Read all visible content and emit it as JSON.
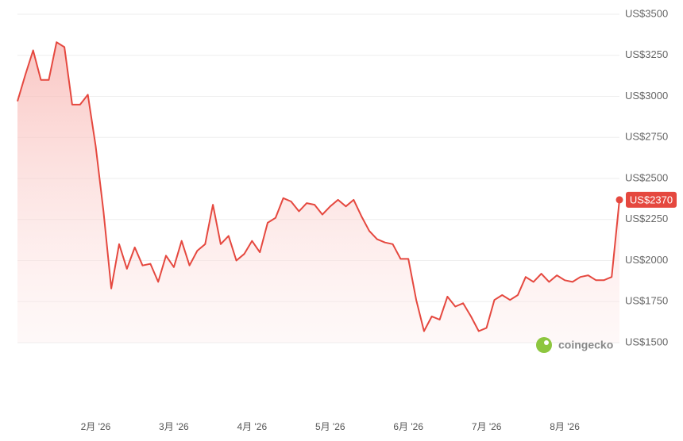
{
  "chart_data": {
    "type": "line",
    "categories": [
      null,
      null,
      null,
      null,
      null,
      null,
      null,
      null,
      null,
      null,
      "2月 '26",
      null,
      null,
      null,
      null,
      null,
      null,
      null,
      null,
      null,
      "3月 '26",
      null,
      null,
      null,
      null,
      null,
      null,
      null,
      null,
      null,
      "4月 '26",
      null,
      null,
      null,
      null,
      null,
      null,
      null,
      null,
      null,
      "5月 '26",
      null,
      null,
      null,
      null,
      null,
      null,
      null,
      null,
      null,
      "6月 '26",
      null,
      null,
      null,
      null,
      null,
      null,
      null,
      null,
      null,
      "7月 '26",
      null,
      null,
      null,
      null,
      null,
      null,
      null,
      null,
      null,
      "8月 '26",
      null,
      null,
      null,
      null,
      null,
      null,
      null
    ],
    "values": [
      2970,
      3130,
      3280,
      3100,
      3100,
      3330,
      3300,
      2950,
      2950,
      3010,
      2700,
      2300,
      1830,
      2100,
      1950,
      2080,
      1970,
      1980,
      1870,
      2030,
      1960,
      2120,
      1970,
      2060,
      2100,
      2340,
      2100,
      2150,
      2000,
      2040,
      2120,
      2050,
      2230,
      2260,
      2380,
      2360,
      2300,
      2350,
      2340,
      2280,
      2330,
      2370,
      2330,
      2370,
      2270,
      2180,
      2130,
      2110,
      2100,
      2010,
      2010,
      1760,
      1570,
      1660,
      1640,
      1780,
      1720,
      1740,
      1660,
      1570,
      1590,
      1760,
      1790,
      1760,
      1790,
      1900,
      1870,
      1920,
      1870,
      1910,
      1880,
      1870,
      1900,
      1910,
      1880,
      1880,
      1900,
      2370
    ],
    "color": "#e5483f",
    "ylim": [
      1500,
      3500
    ],
    "yticks": [
      {
        "value": 1500,
        "label": "US$1500"
      },
      {
        "value": 1750,
        "label": "US$1750"
      },
      {
        "value": 2000,
        "label": "US$2000"
      },
      {
        "value": 2250,
        "label": "US$2250"
      },
      {
        "value": 2500,
        "label": "US$2500"
      },
      {
        "value": 2750,
        "label": "US$2750"
      },
      {
        "value": 3000,
        "label": "US$3000"
      },
      {
        "value": 3250,
        "label": "US$3250"
      },
      {
        "value": 3500,
        "label": "US$3500"
      }
    ],
    "grid": true,
    "last_price": {
      "value": 2370,
      "label": "US$2370"
    },
    "watermark": "coingecko"
  }
}
